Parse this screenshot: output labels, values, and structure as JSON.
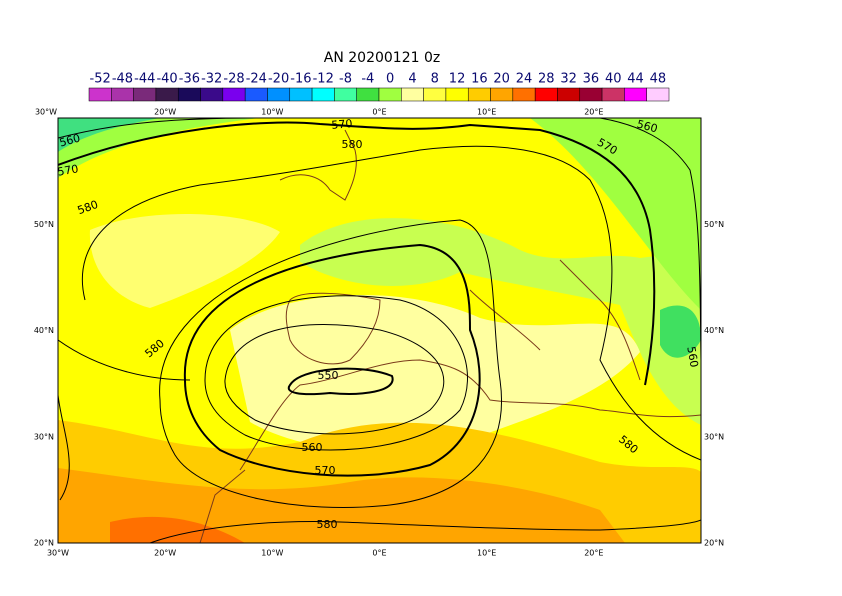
{
  "title": "AN  20200121 0z",
  "colorbar": {
    "labels": [
      "-52",
      "-48",
      "-44",
      "-40",
      "-36",
      "-32",
      "-28",
      "-24",
      "-20",
      "-16",
      "-12",
      "-8",
      "-4",
      "0",
      "4",
      "8",
      "12",
      "16",
      "20",
      "24",
      "28",
      "32",
      "36",
      "40",
      "44",
      "48"
    ],
    "colors": [
      "#cc33cc",
      "#aa33aa",
      "#7a2a7a",
      "#3a1a4a",
      "#1a0a5a",
      "#3a0a8a",
      "#7a00ee",
      "#1a5aff",
      "#0090ff",
      "#00c0ff",
      "#00ffff",
      "#40ffa0",
      "#40e040",
      "#a0ff40",
      "#ffffa0",
      "#ffff40",
      "#ffff00",
      "#ffcc00",
      "#ffa500",
      "#ff7000",
      "#ff0000",
      "#cc0000",
      "#990033",
      "#cc3366",
      "#ff00ff",
      "#ffccff"
    ]
  },
  "axes": {
    "top": [
      "30°W",
      "20°W",
      "10°W",
      "0°E",
      "10°E",
      "20°E"
    ],
    "bottom": [
      "30°W",
      "20°W",
      "10°W",
      "0°E",
      "10°E",
      "20°E"
    ],
    "left": [
      "20°N",
      "30°N",
      "40°N",
      "50°N"
    ],
    "right": [
      "20°N",
      "30°N",
      "40°N",
      "50°N"
    ]
  },
  "contour_labels": [
    "570",
    "580",
    "560",
    "570",
    "580",
    "560",
    "570",
    "580",
    "550",
    "560",
    "570",
    "580",
    "580",
    "560"
  ]
}
